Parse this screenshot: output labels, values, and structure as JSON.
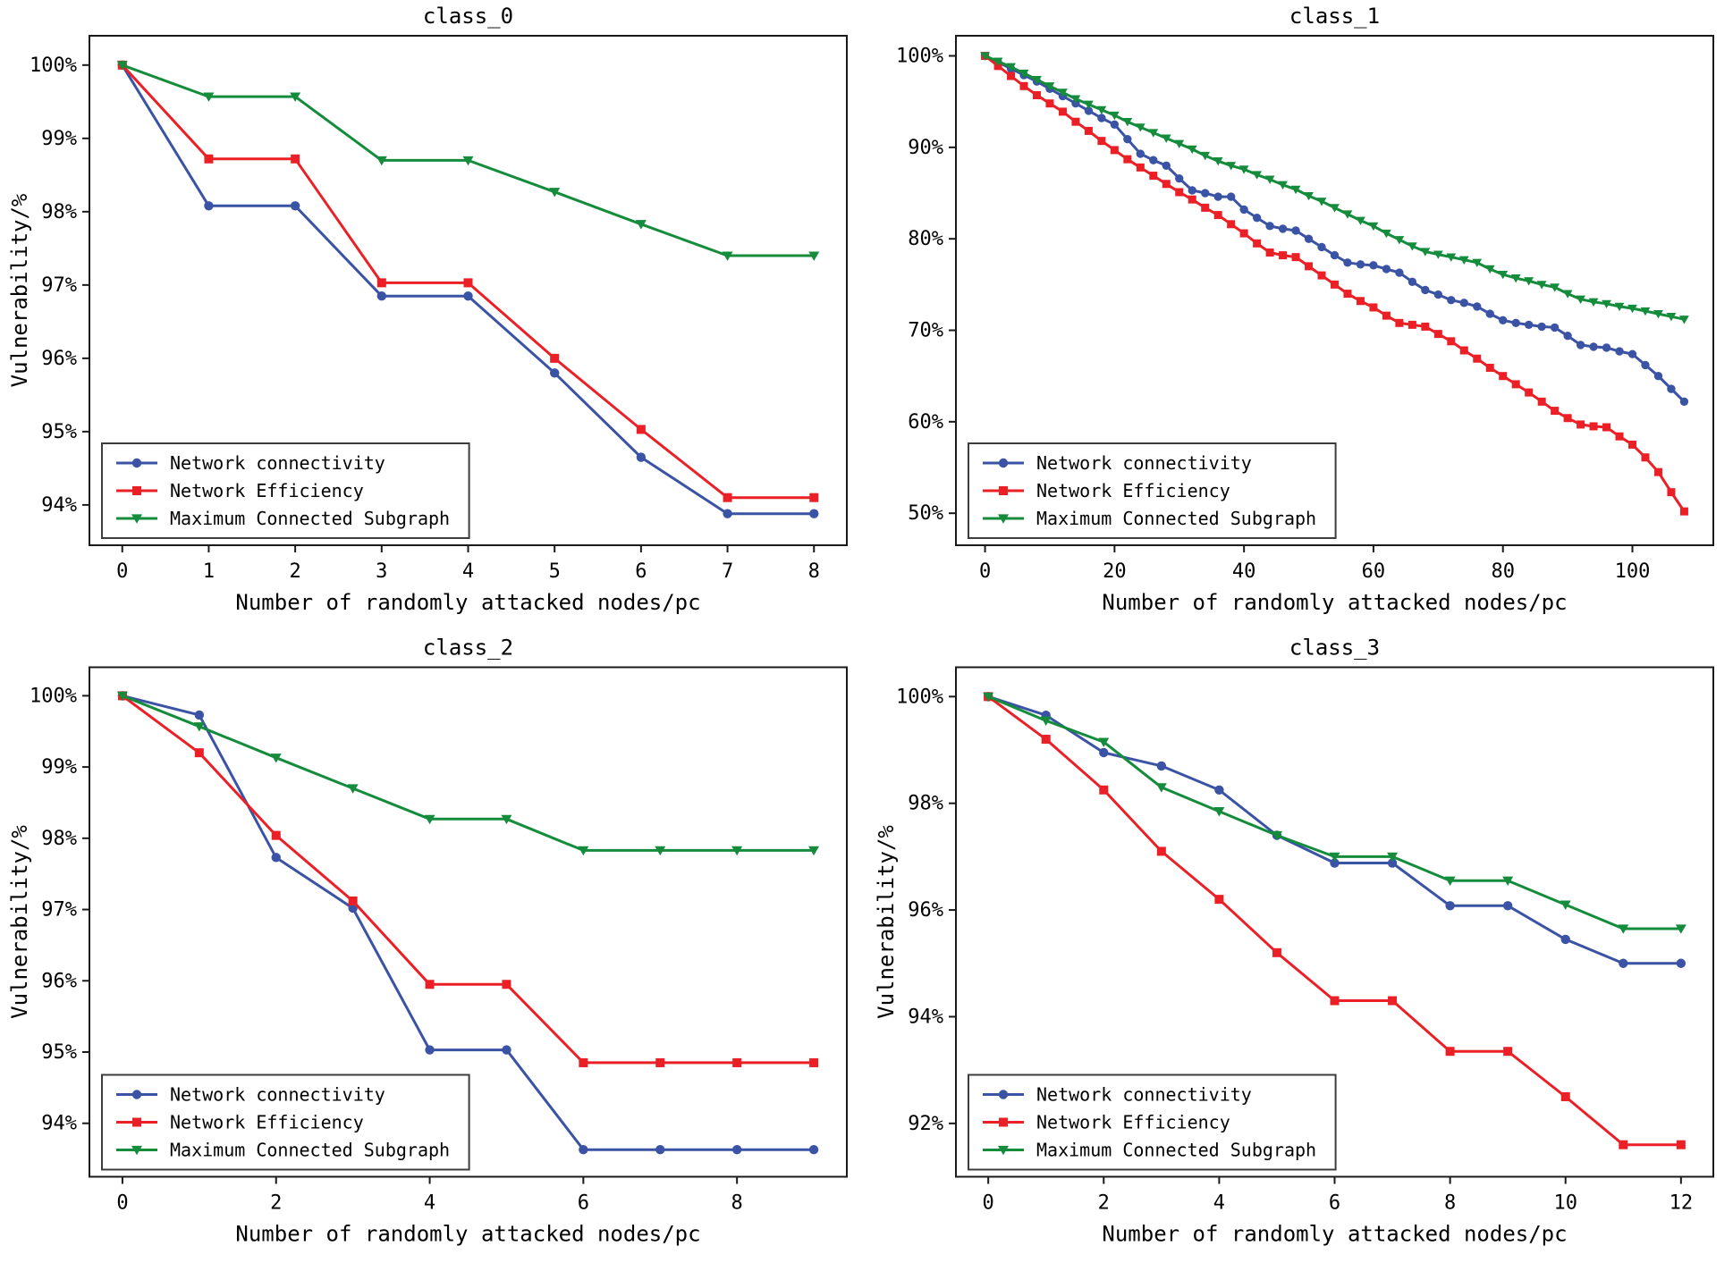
{
  "figure": {
    "background": "#ffffff",
    "xlabel": "Number of randomly attacked nodes/pc",
    "ylabel": "Vulnerability/%"
  },
  "style": {
    "axis_color": "#1a1a1a",
    "text_color": "#000000",
    "legend_border": "#3d3d3d",
    "legend_fill": "#ffffff",
    "series_colors": {
      "blue": "#3a53a4",
      "red": "#eb2026",
      "green": "#148c3c"
    }
  },
  "legend_labels": [
    "Network connectivity",
    "Network Efficiency",
    "Maximum Connected Subgraph"
  ],
  "chart_data": [
    {
      "type": "line",
      "title": "class_0",
      "xlabel": "Number of randomly attacked nodes/pc",
      "ylabel": "Vulnerability/%",
      "legend_position": "lower-left",
      "grid": false,
      "x": [
        0,
        1,
        2,
        3,
        4,
        5,
        6,
        7,
        8
      ],
      "x_ticks": [
        0,
        1,
        2,
        3,
        4,
        5,
        6,
        7,
        8
      ],
      "y_ticks": [
        94,
        95,
        96,
        97,
        98,
        99,
        100
      ],
      "xlim": [
        -0.38,
        8.38
      ],
      "ylim": [
        93.45,
        100.4
      ],
      "series": [
        {
          "name": "Network connectivity",
          "color": "#3a53a4",
          "marker": "circle",
          "values": [
            100,
            98.08,
            98.08,
            96.85,
            96.85,
            95.8,
            94.65,
            93.88,
            93.88
          ]
        },
        {
          "name": "Network Efficiency",
          "color": "#eb2026",
          "marker": "square",
          "values": [
            100,
            98.72,
            98.72,
            97.03,
            97.03,
            96.0,
            95.03,
            94.1,
            94.1
          ]
        },
        {
          "name": "Maximum Connected Subgraph",
          "color": "#148c3c",
          "marker": "triangle-down",
          "values": [
            100,
            99.57,
            99.57,
            98.7,
            98.7,
            98.27,
            97.83,
            97.4,
            97.4
          ]
        }
      ]
    },
    {
      "type": "line",
      "title": "class_1",
      "xlabel": "Number of randomly attacked nodes/pc",
      "ylabel": "",
      "legend_position": "lower-left",
      "grid": false,
      "x": [
        0,
        2,
        4,
        6,
        8,
        10,
        12,
        14,
        16,
        18,
        20,
        22,
        24,
        26,
        28,
        30,
        32,
        34,
        36,
        38,
        40,
        42,
        44,
        46,
        48,
        50,
        52,
        54,
        56,
        58,
        60,
        62,
        64,
        66,
        68,
        70,
        72,
        74,
        76,
        78,
        80,
        82,
        84,
        86,
        88,
        90,
        92,
        94,
        96,
        98,
        100,
        102,
        104,
        106,
        108
      ],
      "x_ticks": [
        0,
        20,
        40,
        60,
        80,
        100
      ],
      "y_ticks": [
        50,
        60,
        70,
        80,
        90,
        100
      ],
      "xlim": [
        -4.5,
        112.5
      ],
      "ylim": [
        46.5,
        102.2
      ],
      "series": [
        {
          "name": "Network connectivity",
          "color": "#3a53a4",
          "marker": "circle",
          "values": [
            100,
            99.3,
            98.6,
            97.9,
            97.2,
            96.4,
            95.6,
            94.8,
            94.0,
            93.2,
            92.5,
            90.9,
            89.3,
            88.6,
            88.0,
            86.6,
            85.3,
            85.0,
            84.6,
            84.6,
            83.2,
            82.3,
            81.4,
            81.1,
            80.9,
            80.0,
            79.1,
            78.2,
            77.4,
            77.2,
            77.1,
            76.7,
            76.3,
            75.3,
            74.4,
            73.9,
            73.3,
            73.0,
            72.6,
            71.8,
            71.1,
            70.8,
            70.6,
            70.4,
            70.3,
            69.4,
            68.4,
            68.2,
            68.1,
            67.7,
            67.4,
            66.2,
            65.0,
            63.6,
            62.2
          ]
        },
        {
          "name": "Network Efficiency",
          "color": "#eb2026",
          "marker": "square",
          "values": [
            100,
            98.9,
            97.8,
            96.7,
            95.7,
            94.8,
            93.9,
            92.8,
            91.8,
            90.7,
            89.7,
            88.7,
            87.8,
            86.9,
            86.0,
            85.1,
            84.3,
            83.4,
            82.6,
            81.6,
            80.6,
            79.5,
            78.5,
            78.2,
            78.0,
            77.0,
            76.0,
            75.0,
            74.0,
            73.2,
            72.5,
            71.6,
            70.8,
            70.6,
            70.4,
            69.6,
            68.8,
            67.8,
            66.9,
            65.9,
            65.0,
            64.1,
            63.2,
            62.2,
            61.2,
            60.4,
            59.7,
            59.5,
            59.4,
            58.4,
            57.5,
            56.1,
            54.5,
            52.3,
            50.2
          ]
        },
        {
          "name": "Maximum Connected Subgraph",
          "color": "#148c3c",
          "marker": "triangle-down",
          "values": [
            100,
            99.4,
            98.8,
            98.1,
            97.4,
            96.7,
            96.0,
            95.3,
            94.7,
            94.1,
            93.5,
            92.8,
            92.2,
            91.6,
            91.0,
            90.4,
            89.8,
            89.1,
            88.5,
            88.0,
            87.6,
            87.0,
            86.5,
            85.9,
            85.4,
            84.7,
            84.1,
            83.4,
            82.7,
            82.0,
            81.4,
            80.6,
            79.9,
            79.2,
            78.6,
            78.3,
            78.0,
            77.7,
            77.4,
            76.7,
            76.1,
            75.7,
            75.4,
            75.0,
            74.7,
            74.0,
            73.4,
            73.1,
            72.9,
            72.6,
            72.4,
            72.1,
            71.8,
            71.5,
            71.2
          ]
        }
      ]
    },
    {
      "type": "line",
      "title": "class_2",
      "xlabel": "Number of randomly attacked nodes/pc",
      "ylabel": "Vulnerability/%",
      "legend_position": "lower-left",
      "grid": false,
      "x": [
        0,
        1,
        2,
        3,
        4,
        5,
        6,
        7,
        8,
        9
      ],
      "x_ticks": [
        0,
        2,
        4,
        6,
        8
      ],
      "y_ticks": [
        94,
        95,
        96,
        97,
        98,
        99,
        100
      ],
      "xlim": [
        -0.43,
        9.43
      ],
      "ylim": [
        93.25,
        100.4
      ],
      "series": [
        {
          "name": "Network connectivity",
          "color": "#3a53a4",
          "marker": "circle",
          "values": [
            100,
            99.73,
            97.73,
            97.02,
            95.03,
            95.03,
            93.63,
            93.63,
            93.63,
            93.63
          ]
        },
        {
          "name": "Network Efficiency",
          "color": "#eb2026",
          "marker": "square",
          "values": [
            100,
            99.2,
            98.04,
            97.12,
            95.95,
            95.95,
            94.85,
            94.85,
            94.85,
            94.85
          ]
        },
        {
          "name": "Maximum Connected Subgraph",
          "color": "#148c3c",
          "marker": "triangle-down",
          "values": [
            100,
            99.57,
            99.13,
            98.7,
            98.27,
            98.27,
            97.83,
            97.83,
            97.83,
            97.83
          ]
        }
      ]
    },
    {
      "type": "line",
      "title": "class_3",
      "xlabel": "Number of randomly attacked nodes/pc",
      "ylabel": "Vulnerability/%",
      "legend_position": "lower-left",
      "grid": false,
      "x": [
        0,
        1,
        2,
        3,
        4,
        5,
        6,
        7,
        8,
        9,
        10,
        11,
        12
      ],
      "x_ticks": [
        0,
        2,
        4,
        6,
        8,
        10,
        12
      ],
      "y_ticks": [
        92,
        94,
        96,
        98,
        100
      ],
      "xlim": [
        -0.56,
        12.56
      ],
      "ylim": [
        91.0,
        100.55
      ],
      "series": [
        {
          "name": "Network connectivity",
          "color": "#3a53a4",
          "marker": "circle",
          "values": [
            100,
            99.65,
            98.95,
            98.7,
            98.25,
            97.4,
            96.88,
            96.88,
            96.08,
            96.08,
            95.45,
            95.0,
            95.0
          ]
        },
        {
          "name": "Network Efficiency",
          "color": "#eb2026",
          "marker": "square",
          "values": [
            100,
            99.2,
            98.25,
            97.1,
            96.2,
            95.2,
            94.3,
            94.3,
            93.35,
            93.35,
            92.5,
            91.6,
            91.6
          ]
        },
        {
          "name": "Maximum Connected Subgraph",
          "color": "#148c3c",
          "marker": "triangle-down",
          "values": [
            100,
            99.55,
            99.15,
            98.3,
            97.85,
            97.4,
            97.0,
            97.0,
            96.55,
            96.55,
            96.1,
            95.65,
            95.65
          ]
        }
      ]
    }
  ]
}
